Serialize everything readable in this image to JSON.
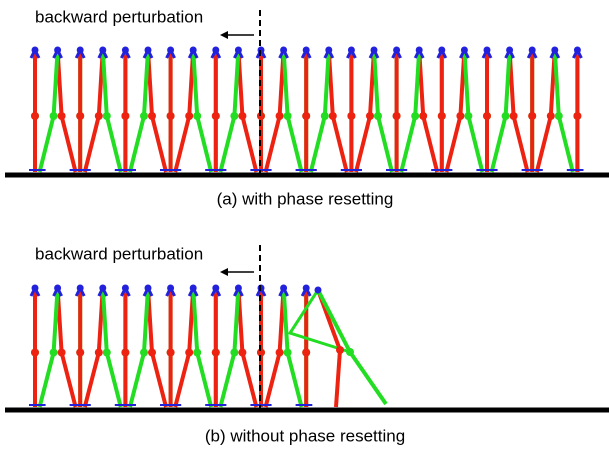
{
  "panels": [
    {
      "label": "backward perturbation",
      "caption": "(a) with phase resetting"
    },
    {
      "label": "backward perturbation",
      "caption": "(b) without phase resetting"
    }
  ]
}
